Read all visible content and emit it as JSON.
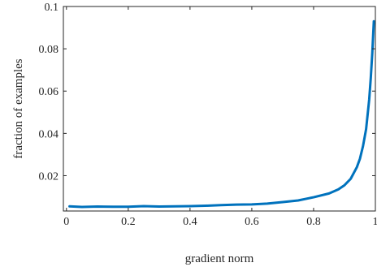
{
  "chart_data": {
    "type": "line",
    "title": "",
    "xlabel": "gradient norm",
    "ylabel": "fraction of examples",
    "xlim": [
      -0.01,
      1.0
    ],
    "ylim": [
      0.0033,
      0.1
    ],
    "x_ticks": [
      0,
      0.2,
      0.4,
      0.6,
      0.8,
      1
    ],
    "x_tick_labels": [
      "0",
      "0.2",
      "0.4",
      "0.6",
      "0.8",
      "1"
    ],
    "y_ticks": [
      0.02,
      0.04,
      0.06,
      0.08,
      0.1
    ],
    "y_tick_labels": [
      "0.02",
      "0.04",
      "0.06",
      "0.08",
      "0.1"
    ],
    "grid": false,
    "legend": "none",
    "series": [
      {
        "color": "#0072BD",
        "x": [
          0.01,
          0.05,
          0.1,
          0.15,
          0.2,
          0.25,
          0.3,
          0.35,
          0.4,
          0.45,
          0.5,
          0.55,
          0.6,
          0.65,
          0.7,
          0.75,
          0.8,
          0.85,
          0.88,
          0.9,
          0.92,
          0.94,
          0.95,
          0.96,
          0.97,
          0.98,
          0.985,
          0.99,
          0.995
        ],
        "values": [
          0.0055,
          0.0052,
          0.0054,
          0.0053,
          0.0053,
          0.0056,
          0.0054,
          0.0055,
          0.0056,
          0.0058,
          0.0061,
          0.0063,
          0.0064,
          0.0068,
          0.0075,
          0.0083,
          0.0098,
          0.0116,
          0.0135,
          0.0155,
          0.0185,
          0.024,
          0.028,
          0.034,
          0.042,
          0.056,
          0.066,
          0.078,
          0.093
        ]
      }
    ]
  }
}
